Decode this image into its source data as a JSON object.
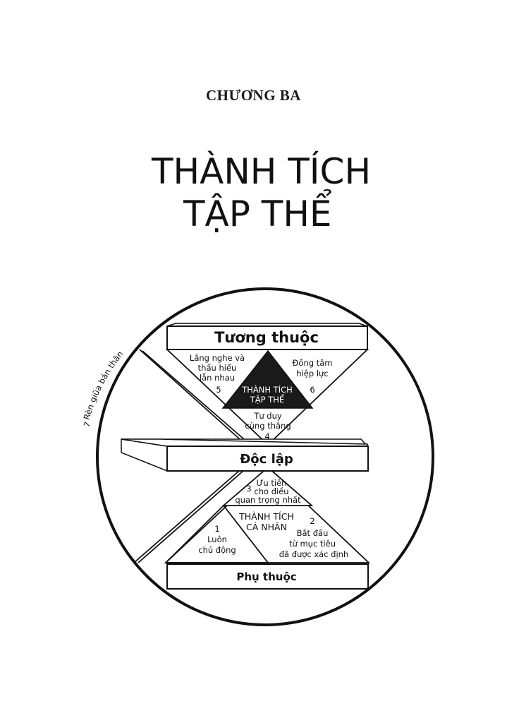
{
  "chapter": "CHƯƠNG BA",
  "title": {
    "line1": "THÀNH TÍCH",
    "line2": "TẬP THỂ"
  },
  "diagram": {
    "levels": {
      "top": "Tương thuộc",
      "middle": "Độc lập",
      "bottom": "Phụ thuộc"
    },
    "public_victory": {
      "line1": "THÀNH TÍCH",
      "line2": "TẬP THỂ"
    },
    "private_victory": {
      "line1": "THÀNH TÍCH",
      "line2": "CÁ NHÂN"
    },
    "habit5": {
      "line1": "Lắng nghe và",
      "line2": "thấu hiểu",
      "line3": "lẫn nhau",
      "number": "5"
    },
    "habit6": {
      "line1": "Đồng tâm",
      "line2": "hiệp lực",
      "number": "6"
    },
    "habit4": {
      "line1": "Tư duy",
      "line2": "cùng thắng",
      "number": "4"
    },
    "habit3": {
      "number": "3",
      "line1": "Ưu tiên",
      "line2": "cho điều",
      "line3": "quan trọng nhất"
    },
    "habit1": {
      "number": "1",
      "line1": "Luôn",
      "line2": "chủ động"
    },
    "habit2": {
      "number": "2",
      "line1": "Bắt đầu",
      "line2": "từ mục tiêu",
      "line3": "đã được xác định"
    },
    "habit7": {
      "number": "7",
      "label": "Rèn giũa bản thân"
    }
  }
}
